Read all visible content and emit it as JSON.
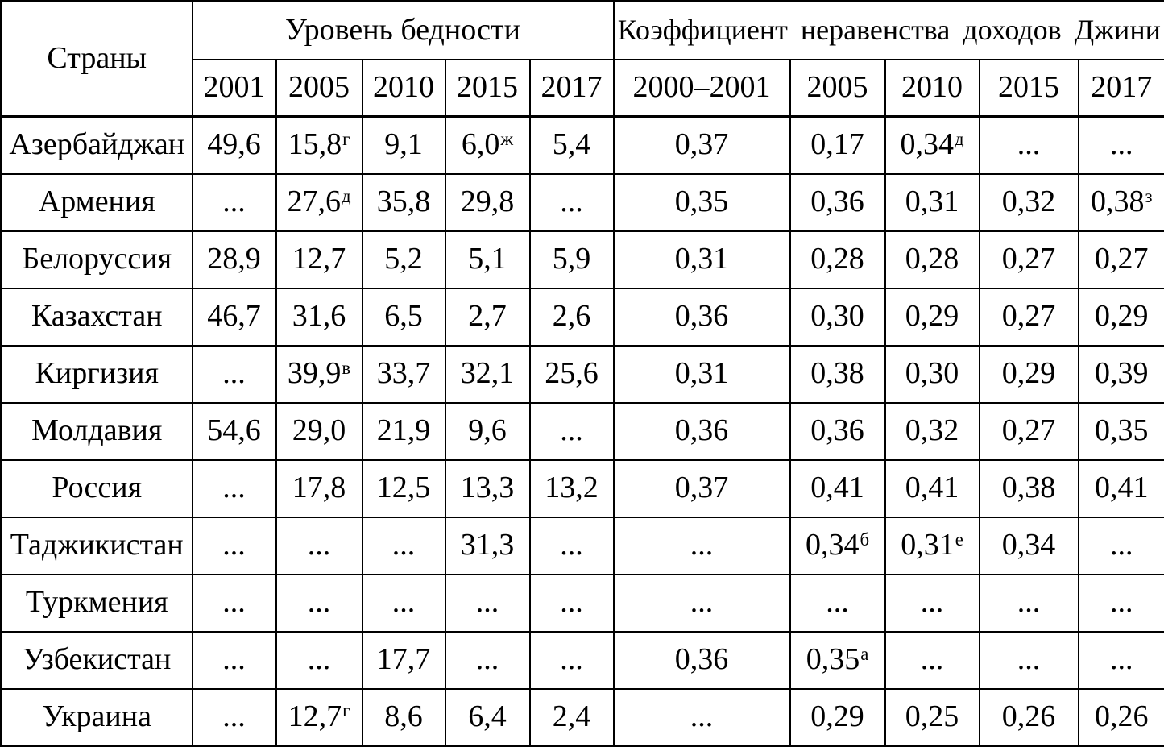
{
  "colors": {
    "background": "#ffffff",
    "text": "#000000",
    "border": "#000000"
  },
  "chart_data": {
    "type": "table",
    "corner_header": "Страны",
    "column_groups": [
      {
        "label": "Уровень бедности",
        "columns": [
          "2001",
          "2005",
          "2010",
          "2015",
          "2017"
        ]
      },
      {
        "label": "Коэффициент неравенства доходов Джини",
        "columns": [
          "2000–2001",
          "2005",
          "2010",
          "2015",
          "2017"
        ]
      }
    ],
    "rows": [
      {
        "country": "Азербайджан",
        "values": [
          "49,6",
          "15,8^г",
          "9,1",
          "6,0^ж",
          "5,4",
          "0,37",
          "0,17",
          "0,34^д",
          "...",
          "..."
        ]
      },
      {
        "country": "Армения",
        "values": [
          "...",
          "27,6^д",
          "35,8",
          "29,8",
          "...",
          "0,35",
          "0,36",
          "0,31",
          "0,32",
          "0,38^з"
        ]
      },
      {
        "country": "Белоруссия",
        "values": [
          "28,9",
          "12,7",
          "5,2",
          "5,1",
          "5,9",
          "0,31",
          "0,28",
          "0,28",
          "0,27",
          "0,27"
        ]
      },
      {
        "country": "Казахстан",
        "values": [
          "46,7",
          "31,6",
          "6,5",
          "2,7",
          "2,6",
          "0,36",
          "0,30",
          "0,29",
          "0,27",
          "0,29"
        ]
      },
      {
        "country": "Киргизия",
        "values": [
          "...",
          "39,9^в",
          "33,7",
          "32,1",
          "25,6",
          "0,31",
          "0,38",
          "0,30",
          "0,29",
          "0,39"
        ]
      },
      {
        "country": "Молдавия",
        "values": [
          "54,6",
          "29,0",
          "21,9",
          "9,6",
          "...",
          "0,36",
          "0,36",
          "0,32",
          "0,27",
          "0,35"
        ]
      },
      {
        "country": "Россия",
        "values": [
          "...",
          "17,8",
          "12,5",
          "13,3",
          "13,2",
          "0,37",
          "0,41",
          "0,41",
          "0,38",
          "0,41"
        ]
      },
      {
        "country": "Таджикистан",
        "values": [
          "...",
          "...",
          "...",
          "31,3",
          "...",
          "...",
          "0,34^б",
          "0,31^е",
          "0,34",
          "..."
        ]
      },
      {
        "country": "Туркмения",
        "values": [
          "...",
          "...",
          "...",
          "...",
          "...",
          "...",
          "...",
          "...",
          "...",
          "..."
        ]
      },
      {
        "country": "Узбекистан",
        "values": [
          "...",
          "...",
          "17,7",
          "...",
          "...",
          "0,36",
          "0,35^а",
          "...",
          "...",
          "..."
        ]
      },
      {
        "country": "Украина",
        "values": [
          "...",
          "12,7^г",
          "8,6",
          "6,4",
          "2,4",
          "...",
          "0,29",
          "0,25",
          "0,26",
          "0,26"
        ]
      }
    ]
  }
}
